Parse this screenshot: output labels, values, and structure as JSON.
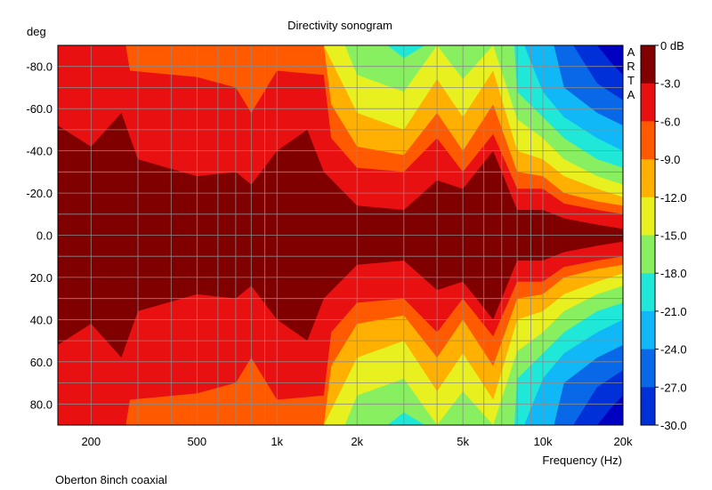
{
  "chart_data": {
    "type": "heatmap",
    "title": "Directivity sonogram",
    "ylabel": "deg",
    "xlabel": "Frequency (Hz)",
    "footnote": "Oberton 8inch coaxial",
    "watermark": [
      "A",
      "R",
      "T",
      "A"
    ],
    "x_scale": "log",
    "xlim": [
      150,
      20000
    ],
    "ylim": [
      -90,
      90
    ],
    "y_inverted": true,
    "x_ticks": [
      {
        "value": 200,
        "label": "200"
      },
      {
        "value": 500,
        "label": "500"
      },
      {
        "value": 1000,
        "label": "1k"
      },
      {
        "value": 2000,
        "label": "2k"
      },
      {
        "value": 5000,
        "label": "5k"
      },
      {
        "value": 10000,
        "label": "10k"
      },
      {
        "value": 20000,
        "label": "20k"
      }
    ],
    "x_grid": [
      150,
      200,
      300,
      400,
      500,
      600,
      700,
      800,
      900,
      1000,
      2000,
      3000,
      4000,
      5000,
      6000,
      7000,
      8000,
      9000,
      10000,
      20000
    ],
    "y_ticks": [
      {
        "value": -80,
        "label": "-80.0"
      },
      {
        "value": -60,
        "label": "-60.0"
      },
      {
        "value": -40,
        "label": "-40.0"
      },
      {
        "value": -20,
        "label": "-20.0"
      },
      {
        "value": 0,
        "label": "0.0"
      },
      {
        "value": 20,
        "label": "20.0"
      },
      {
        "value": 40,
        "label": "40.0"
      },
      {
        "value": 60,
        "label": "60.0"
      },
      {
        "value": 80,
        "label": "80.0"
      }
    ],
    "y_grid": [
      -80,
      -70,
      -60,
      -50,
      -40,
      -30,
      -20,
      -10,
      0,
      10,
      20,
      30,
      40,
      50,
      60,
      70,
      80
    ],
    "colorbar": {
      "levels": [
        {
          "label": "0 dB",
          "color": "#800000"
        },
        {
          "label": "-3.0",
          "color": "#e81010"
        },
        {
          "label": "-6.0",
          "color": "#ff5a00"
        },
        {
          "label": "-9.0",
          "color": "#ffb000"
        },
        {
          "label": "-12.0",
          "color": "#e8f020"
        },
        {
          "label": "-15.0",
          "color": "#88f060"
        },
        {
          "label": "-18.0",
          "color": "#20e8d8"
        },
        {
          "label": "-21.0",
          "color": "#10b8f8"
        },
        {
          "label": "-24.0",
          "color": "#0868e8"
        },
        {
          "label": "-27.0",
          "color": "#0030d8"
        },
        {
          "label": "-30.0",
          "color": "#0000c0"
        }
      ]
    },
    "contours": [
      {
        "level": "-3.0",
        "angles_deg": [
          {
            "freq": 150,
            "angle": 52
          },
          {
            "freq": 200,
            "angle": 42
          },
          {
            "freq": 260,
            "angle": 58
          },
          {
            "freq": 300,
            "angle": 36
          },
          {
            "freq": 500,
            "angle": 28
          },
          {
            "freq": 700,
            "angle": 30
          },
          {
            "freq": 800,
            "angle": 24
          },
          {
            "freq": 1000,
            "angle": 40
          },
          {
            "freq": 1300,
            "angle": 50
          },
          {
            "freq": 1500,
            "angle": 30
          },
          {
            "freq": 2000,
            "angle": 14
          },
          {
            "freq": 3000,
            "angle": 12
          },
          {
            "freq": 4000,
            "angle": 26
          },
          {
            "freq": 5000,
            "angle": 22
          },
          {
            "freq": 6500,
            "angle": 40
          },
          {
            "freq": 8000,
            "angle": 12
          },
          {
            "freq": 10000,
            "angle": 12
          },
          {
            "freq": 12000,
            "angle": 8
          },
          {
            "freq": 16000,
            "angle": 5
          },
          {
            "freq": 20000,
            "angle": 3
          }
        ]
      },
      {
        "level": "-6.0",
        "angles_deg": [
          {
            "freq": 150,
            "angle": 90
          },
          {
            "freq": 270,
            "angle": 90
          },
          {
            "freq": 280,
            "angle": 78
          },
          {
            "freq": 500,
            "angle": 75
          },
          {
            "freq": 700,
            "angle": 70
          },
          {
            "freq": 800,
            "angle": 58
          },
          {
            "freq": 1000,
            "angle": 78
          },
          {
            "freq": 1500,
            "angle": 76
          },
          {
            "freq": 1600,
            "angle": 46
          },
          {
            "freq": 2000,
            "angle": 32
          },
          {
            "freq": 3000,
            "angle": 30
          },
          {
            "freq": 4000,
            "angle": 46
          },
          {
            "freq": 5000,
            "angle": 30
          },
          {
            "freq": 6500,
            "angle": 48
          },
          {
            "freq": 8000,
            "angle": 22
          },
          {
            "freq": 10000,
            "angle": 22
          },
          {
            "freq": 12000,
            "angle": 15
          },
          {
            "freq": 16000,
            "angle": 12
          },
          {
            "freq": 20000,
            "angle": 10
          }
        ]
      },
      {
        "level": "-9.0",
        "angles_deg": [
          {
            "freq": 150,
            "angle": 90
          },
          {
            "freq": 1500,
            "angle": 90
          },
          {
            "freq": 1600,
            "angle": 62
          },
          {
            "freq": 2000,
            "angle": 42
          },
          {
            "freq": 3000,
            "angle": 38
          },
          {
            "freq": 4000,
            "angle": 58
          },
          {
            "freq": 5000,
            "angle": 40
          },
          {
            "freq": 6500,
            "angle": 62
          },
          {
            "freq": 8000,
            "angle": 30
          },
          {
            "freq": 10000,
            "angle": 28
          },
          {
            "freq": 12000,
            "angle": 20
          },
          {
            "freq": 16000,
            "angle": 16
          },
          {
            "freq": 20000,
            "angle": 14
          }
        ]
      },
      {
        "level": "-12.0",
        "angles_deg": [
          {
            "freq": 150,
            "angle": 90
          },
          {
            "freq": 1500,
            "angle": 90
          },
          {
            "freq": 1700,
            "angle": 76
          },
          {
            "freq": 2000,
            "angle": 58
          },
          {
            "freq": 3000,
            "angle": 50
          },
          {
            "freq": 4000,
            "angle": 74
          },
          {
            "freq": 5000,
            "angle": 56
          },
          {
            "freq": 6500,
            "angle": 78
          },
          {
            "freq": 8000,
            "angle": 40
          },
          {
            "freq": 10000,
            "angle": 36
          },
          {
            "freq": 12000,
            "angle": 28
          },
          {
            "freq": 16000,
            "angle": 22
          },
          {
            "freq": 20000,
            "angle": 18
          }
        ]
      },
      {
        "level": "-15.0",
        "angles_deg": [
          {
            "freq": 150,
            "angle": 90
          },
          {
            "freq": 1800,
            "angle": 90
          },
          {
            "freq": 2000,
            "angle": 76
          },
          {
            "freq": 3000,
            "angle": 68
          },
          {
            "freq": 4000,
            "angle": 90
          },
          {
            "freq": 5000,
            "angle": 74
          },
          {
            "freq": 6500,
            "angle": 90
          },
          {
            "freq": 8000,
            "angle": 55
          },
          {
            "freq": 10000,
            "angle": 46
          },
          {
            "freq": 12000,
            "angle": 36
          },
          {
            "freq": 16000,
            "angle": 28
          },
          {
            "freq": 20000,
            "angle": 24
          }
        ]
      },
      {
        "level": "-18.0",
        "angles_deg": [
          {
            "freq": 150,
            "angle": 90
          },
          {
            "freq": 2600,
            "angle": 90
          },
          {
            "freq": 3000,
            "angle": 84
          },
          {
            "freq": 3600,
            "angle": 90
          },
          {
            "freq": 7800,
            "angle": 90
          },
          {
            "freq": 8000,
            "angle": 68
          },
          {
            "freq": 10000,
            "angle": 56
          },
          {
            "freq": 12000,
            "angle": 46
          },
          {
            "freq": 16000,
            "angle": 36
          },
          {
            "freq": 20000,
            "angle": 32
          }
        ]
      },
      {
        "level": "-21.0",
        "angles_deg": [
          {
            "freq": 150,
            "angle": 90
          },
          {
            "freq": 8500,
            "angle": 90
          },
          {
            "freq": 10000,
            "angle": 68
          },
          {
            "freq": 12000,
            "angle": 56
          },
          {
            "freq": 16000,
            "angle": 46
          },
          {
            "freq": 20000,
            "angle": 40
          }
        ]
      },
      {
        "level": "-24.0",
        "angles_deg": [
          {
            "freq": 150,
            "angle": 90
          },
          {
            "freq": 11000,
            "angle": 90
          },
          {
            "freq": 12000,
            "angle": 70
          },
          {
            "freq": 16000,
            "angle": 58
          },
          {
            "freq": 20000,
            "angle": 52
          }
        ]
      },
      {
        "level": "-27.0",
        "angles_deg": [
          {
            "freq": 150,
            "angle": 90
          },
          {
            "freq": 13000,
            "angle": 90
          },
          {
            "freq": 16000,
            "angle": 72
          },
          {
            "freq": 20000,
            "angle": 64
          }
        ]
      },
      {
        "level": "-30.0",
        "angles_deg": [
          {
            "freq": 150,
            "angle": 90
          },
          {
            "freq": 16000,
            "angle": 90
          },
          {
            "freq": 18000,
            "angle": 82
          },
          {
            "freq": 20000,
            "angle": 76
          }
        ]
      }
    ]
  }
}
